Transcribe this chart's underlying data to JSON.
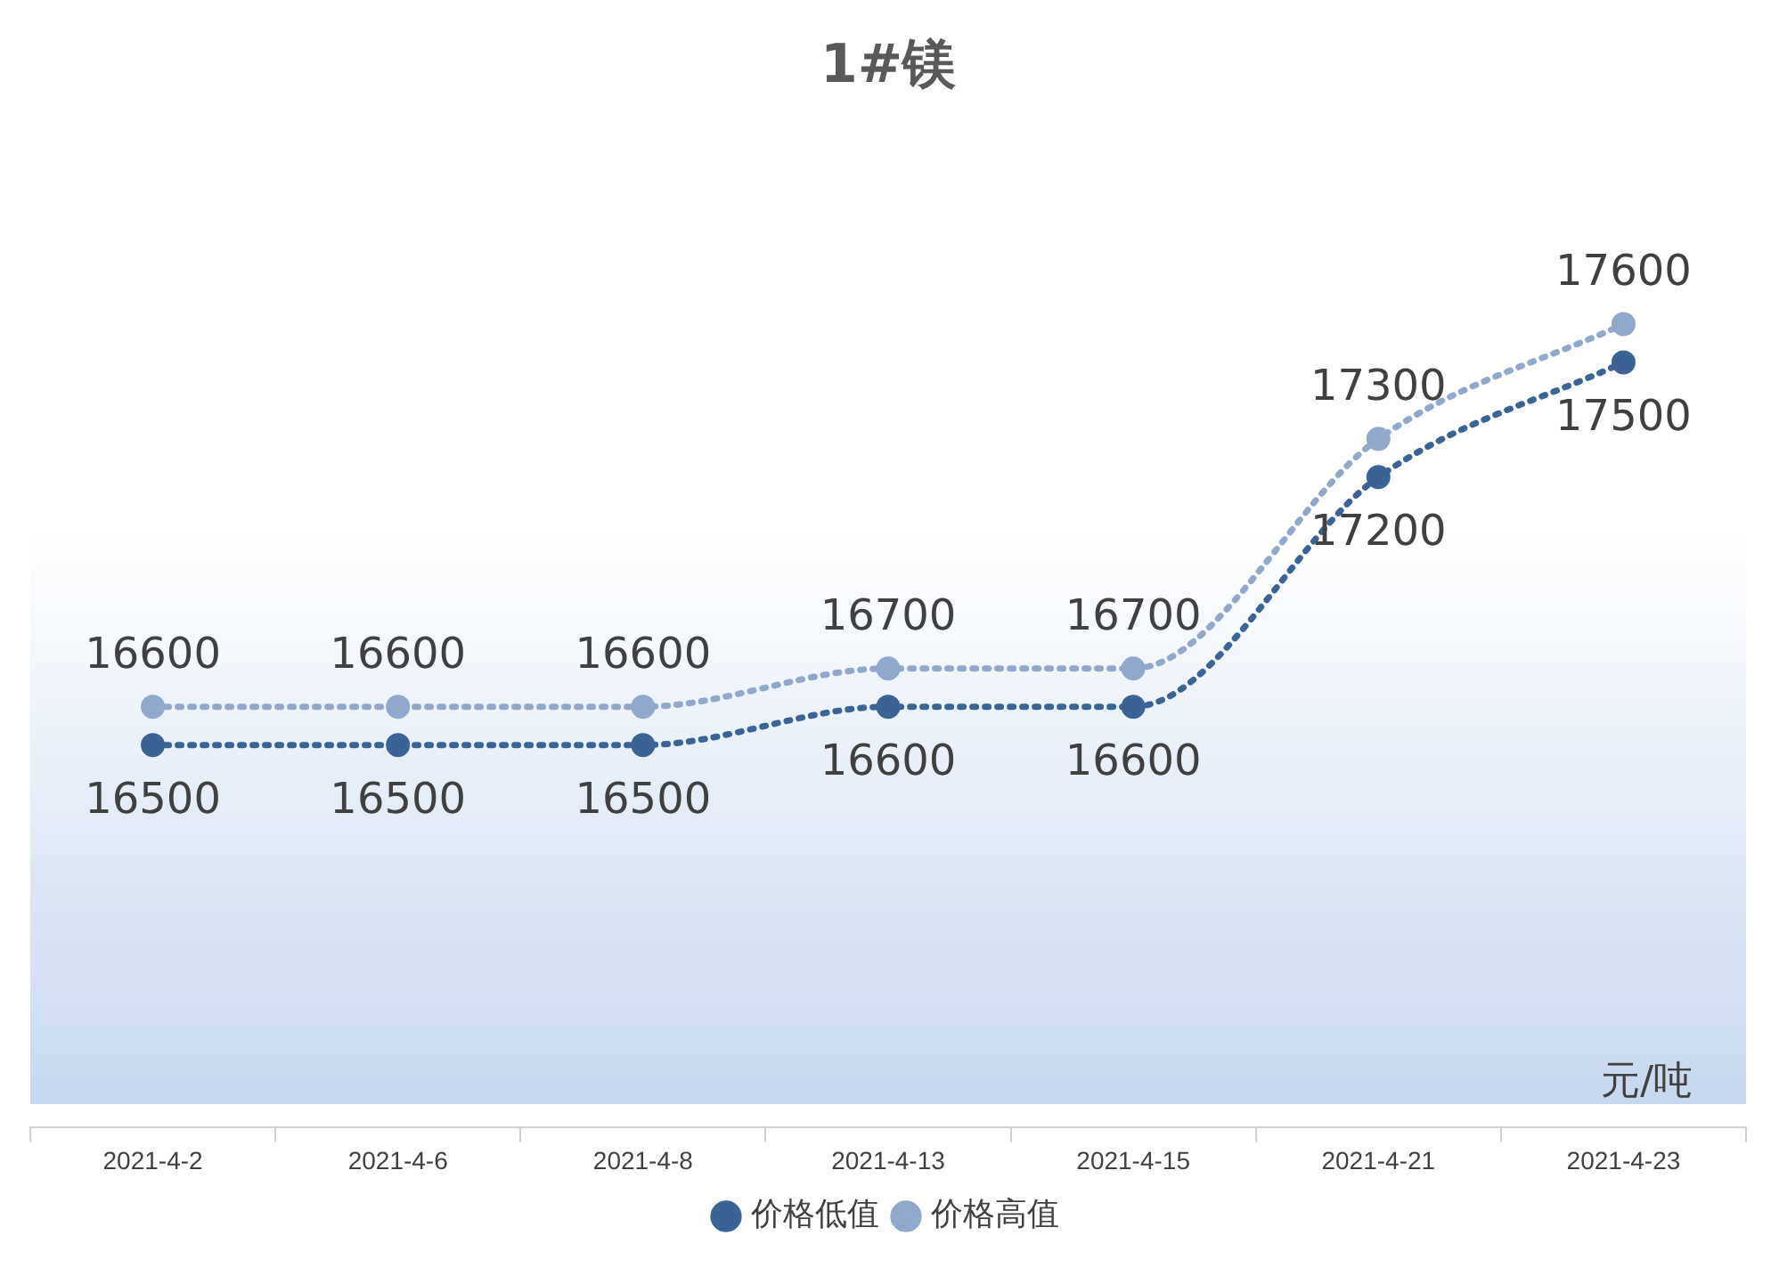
{
  "chart_data": {
    "type": "line",
    "title": "1#镁",
    "categories": [
      "2021-4-2",
      "2021-4-6",
      "2021-4-8",
      "2021-4-13",
      "2021-4-15",
      "2021-4-21",
      "2021-4-23"
    ],
    "series": [
      {
        "name": "价格低值",
        "color": "#3a6396",
        "values": [
          16500,
          16500,
          16500,
          16600,
          16600,
          17200,
          17500
        ]
      },
      {
        "name": "价格高值",
        "color": "#8fa8cc",
        "values": [
          16600,
          16600,
          16600,
          16700,
          16700,
          17300,
          17600
        ]
      }
    ],
    "data_labels": true,
    "legend": "bottom",
    "marker": "circle",
    "line_style": "dotted",
    "annotations": [
      "元/吨"
    ]
  }
}
